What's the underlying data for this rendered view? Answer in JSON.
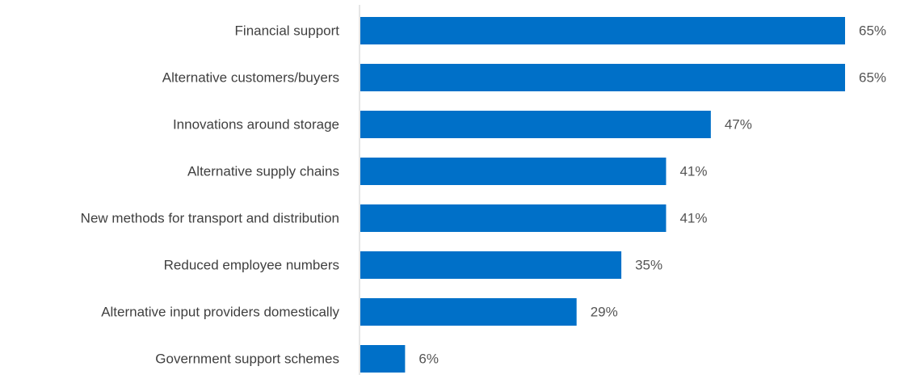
{
  "chart_data": {
    "type": "bar",
    "orientation": "horizontal",
    "categories": [
      "Financial support",
      "Alternative customers/buyers",
      "Innovations around storage",
      "Alternative supply chains",
      "New methods for transport and distribution",
      "Reduced employee numbers",
      "Alternative input providers domestically",
      "Government support schemes"
    ],
    "values": [
      65,
      65,
      47,
      41,
      41,
      35,
      29,
      6
    ],
    "value_labels": [
      "65%",
      "65%",
      "47%",
      "41%",
      "41%",
      "35%",
      "29%",
      "6%"
    ],
    "unit": "%",
    "xlim": [
      0,
      65
    ],
    "grid": false,
    "legend": "none",
    "bar_color": "#0070C8",
    "axis_color": "#cccccc",
    "label_color": "#404040",
    "value_color": "#555555"
  }
}
